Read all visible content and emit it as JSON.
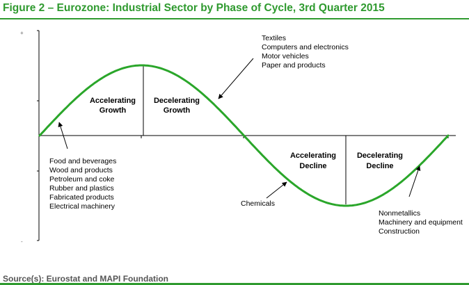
{
  "title": "Figure 2 – Eurozone: Industrial Sector by Phase of Cycle, 3rd Quarter 2015",
  "source": "Source(s): Eurostat and MAPI Foundation",
  "colors": {
    "title": "#2f9a2f",
    "curve": "#2aa62a",
    "axis": "#000000",
    "source_text": "#555555"
  },
  "axis_ticks": {
    "top": "+",
    "bottom": "-"
  },
  "phases": {
    "accelerating_growth": [
      "Accelerating",
      "Growth"
    ],
    "decelerating_growth": [
      "Decelerating",
      "Growth"
    ],
    "accelerating_decline": [
      "Accelerating",
      "Decline"
    ],
    "decelerating_decline": [
      "Decelerating",
      "Decline"
    ]
  },
  "groups": {
    "accelerating_growth": [
      "Food and beverages",
      "Wood and products",
      "Petroleum and coke",
      "Rubber and plastics",
      "Fabricated products",
      "Electrical machinery"
    ],
    "decelerating_growth": [
      "Textiles",
      "Computers and electronics",
      "Motor vehicles",
      "Paper and products"
    ],
    "accelerating_decline": [
      "Chemicals"
    ],
    "decelerating_decline": [
      "Nonmetallics",
      "Machinery and equipment",
      "Construction"
    ]
  }
}
